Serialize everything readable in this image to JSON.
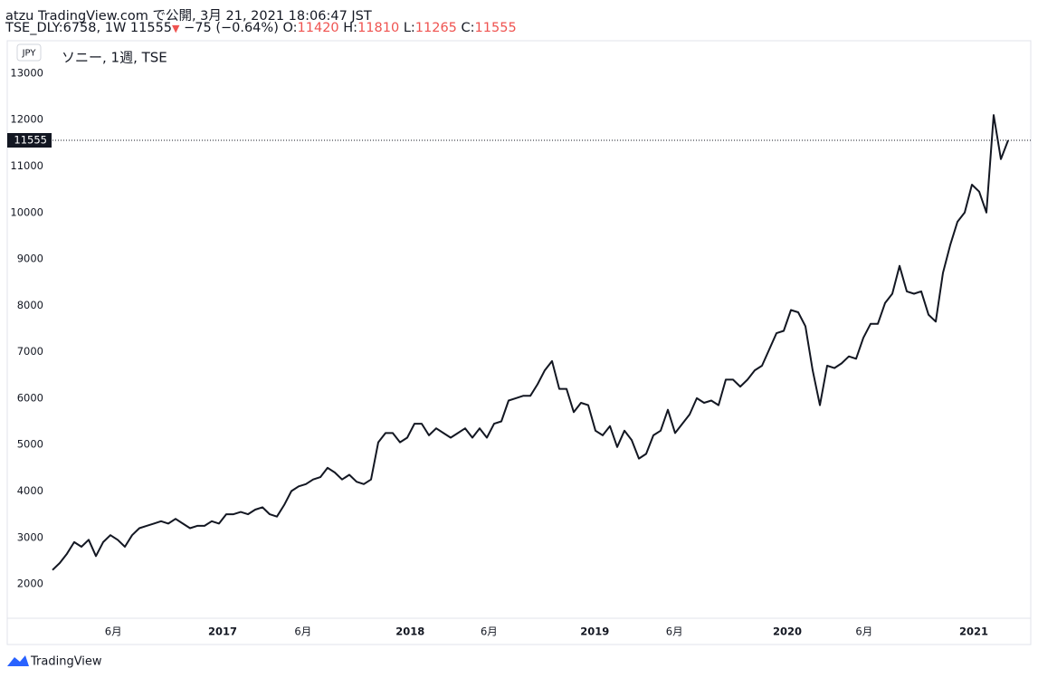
{
  "header": {
    "line1": "atzu TradingView.com で公開, 3月 21, 2021 18:06:47 JST",
    "symbol": "TSE_DLY:6758, 1W 11555",
    "change": "−75 (−0.64%)",
    "ohlc": [
      {
        "label": "O:",
        "value": "11420"
      },
      {
        "label": "H:",
        "value": "11810"
      },
      {
        "label": "L:",
        "value": "11265"
      },
      {
        "label": "C:",
        "value": "11555"
      }
    ]
  },
  "chart_data": {
    "type": "line",
    "title": "ソニー, 1週, TSE",
    "currency": "JPY",
    "series": [
      {
        "color": "#131722",
        "values": [
          2300,
          2450,
          2650,
          2900,
          2800,
          2950,
          2600,
          2900,
          3050,
          2950,
          2800,
          3050,
          3200,
          3250,
          3300,
          3350,
          3300,
          3400,
          3300,
          3200,
          3250,
          3250,
          3350,
          3300,
          3500,
          3500,
          3550,
          3500,
          3600,
          3650,
          3500,
          3450,
          3700,
          4000,
          4100,
          4150,
          4250,
          4300,
          4500,
          4400,
          4250,
          4350,
          4200,
          4150,
          4250,
          5050,
          5250,
          5250,
          5050,
          5150,
          5450,
          5450,
          5200,
          5350,
          5250,
          5150,
          5250,
          5350,
          5150,
          5350,
          5150,
          5450,
          5500,
          5950,
          6000,
          6050,
          6050,
          6300,
          6600,
          6800,
          6200,
          6200,
          5700,
          5900,
          5850,
          5300,
          5200,
          5400,
          4950,
          5300,
          5100,
          4700,
          4800,
          5200,
          5300,
          5750,
          5250,
          5450,
          5650,
          6000,
          5900,
          5950,
          5850,
          6400,
          6400,
          6250,
          6400,
          6600,
          6700,
          7050,
          7400,
          7450,
          7900,
          7850,
          7550,
          6600,
          5850,
          6700,
          6650,
          6750,
          6900,
          6850,
          7300,
          7600,
          7600,
          8050,
          8250,
          8850,
          8300,
          8250,
          8300,
          7800,
          7650,
          8700,
          9300,
          9800,
          10000,
          10600,
          10450,
          10000,
          12100,
          11150,
          11555
        ]
      }
    ],
    "xlim": [
      0,
      134
    ],
    "xticks": [
      {
        "value": 8.4,
        "label": "6月"
      },
      {
        "value": 23.5,
        "label": "2017"
      },
      {
        "value": 34.6,
        "label": "6月"
      },
      {
        "value": 49.4,
        "label": "2018"
      },
      {
        "value": 60.3,
        "label": "6月"
      },
      {
        "value": 74.9,
        "label": "2019"
      },
      {
        "value": 85.9,
        "label": "6月"
      },
      {
        "value": 101.5,
        "label": "2020"
      },
      {
        "value": 112.1,
        "label": "6月"
      },
      {
        "value": 127.25,
        "label": "2021"
      }
    ],
    "ylim": [
      1260,
      13700
    ],
    "yticks": [
      2000,
      3000,
      4000,
      5000,
      6000,
      7000,
      8000,
      9000,
      10000,
      11000,
      12000,
      13000
    ]
  },
  "footer": "TradingView"
}
